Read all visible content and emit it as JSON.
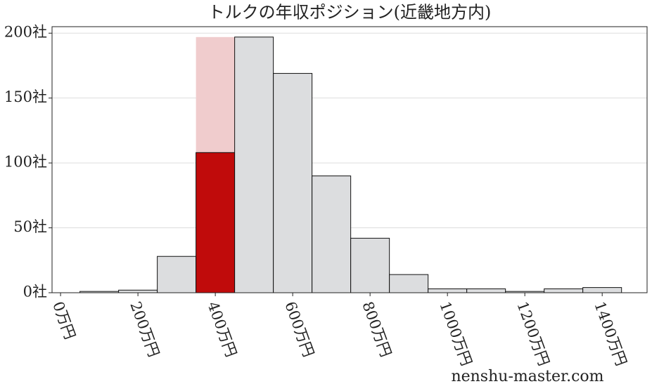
{
  "chart_data": {
    "type": "histogram",
    "title": "トルクの年収ポジション(近畿地方内)",
    "bins": [
      50,
      150,
      250,
      350,
      450,
      550,
      650,
      750,
      850,
      950,
      1050,
      1150,
      1250,
      1350,
      1450
    ],
    "counts": [
      1,
      2,
      28,
      108,
      197,
      169,
      90,
      42,
      14,
      3,
      3,
      1,
      3,
      4
    ],
    "color": "#dcdddf",
    "highlight": {
      "bin_index": 3,
      "color": "#c00b0b",
      "band_top": 197,
      "band_color": "#f0cccd"
    },
    "xlim": [
      -22,
      1516
    ],
    "ylim": [
      0,
      205
    ],
    "xticks": [
      {
        "value": 0,
        "label": "0万円"
      },
      {
        "value": 200,
        "label": "200万円"
      },
      {
        "value": 400,
        "label": "400万円"
      },
      {
        "value": 600,
        "label": "600万円"
      },
      {
        "value": 800,
        "label": "800万円"
      },
      {
        "value": 1000,
        "label": "1000万円"
      },
      {
        "value": 1200,
        "label": "1200万円"
      },
      {
        "value": 1400,
        "label": "1400万円"
      }
    ],
    "yticks": [
      {
        "value": 0,
        "label": "0社"
      },
      {
        "value": 50,
        "label": "50社"
      },
      {
        "value": 100,
        "label": "100社"
      },
      {
        "value": 150,
        "label": "150社"
      },
      {
        "value": 200,
        "label": "200社"
      }
    ],
    "grid": true,
    "watermark": "nenshu-master.com"
  }
}
